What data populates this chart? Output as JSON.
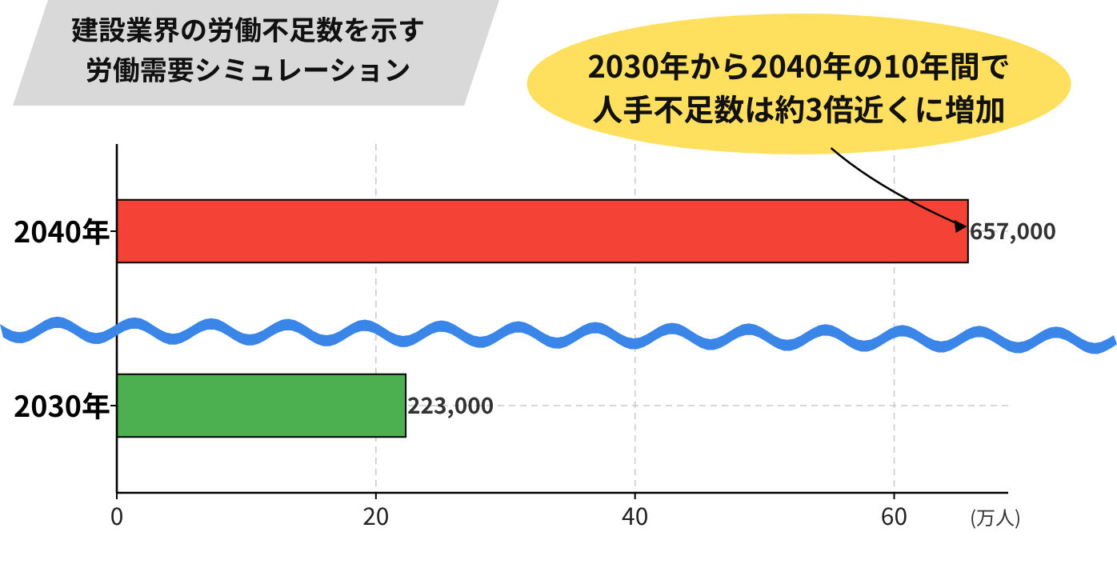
{
  "chart_data": {
    "type": "bar",
    "orientation": "horizontal",
    "title": "建設業界の労働不足数を示す労働需要シミュレーション",
    "xlabel": "(万人)",
    "categories": [
      "2040年",
      "2030年"
    ],
    "values": [
      65.7,
      22.3
    ],
    "colors": [
      "#f44336",
      "#4caf50"
    ],
    "xlim": [
      0,
      68.8
    ],
    "xticks": [
      0,
      20,
      40,
      60
    ],
    "grid": true,
    "annotations": [
      {
        "text": "2030年から2040年の10年間で人手不足数は約3倍近くに増加",
        "x": 65.5,
        "y": "2040年"
      },
      {
        "text": "657,000",
        "x": 65.7,
        "y": "2040年"
      },
      {
        "text": "223,000",
        "x": 22.3,
        "y": "2030年"
      }
    ]
  }
}
